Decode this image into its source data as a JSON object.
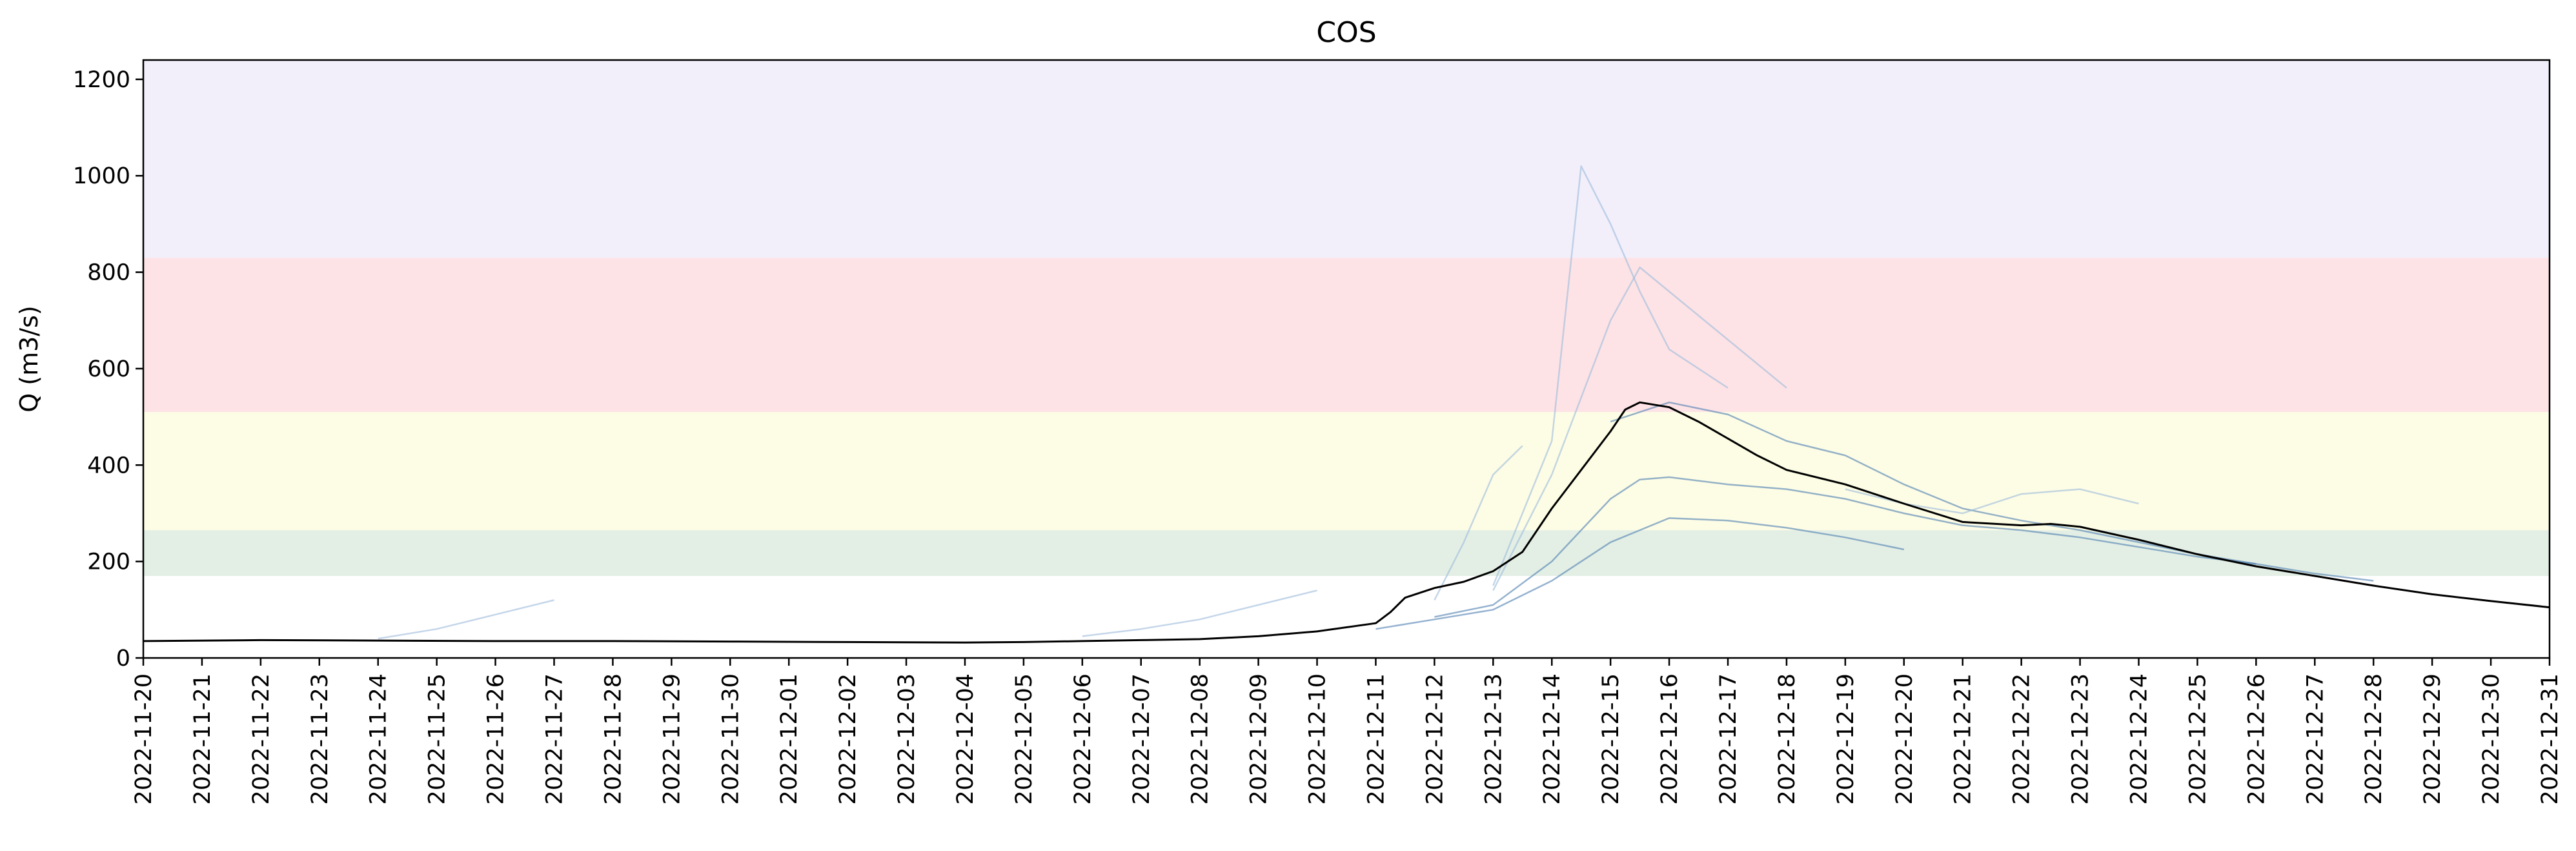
{
  "chart_data": {
    "type": "line",
    "title": "COS",
    "xlabel": "",
    "ylabel": "Q (m3/s)",
    "xlim": [
      "2022-11-20",
      "2022-12-31"
    ],
    "ylim": [
      0,
      1240
    ],
    "yticks": [
      0,
      200,
      400,
      600,
      800,
      1000,
      1200
    ],
    "xticks": [
      "2022-11-20",
      "2022-11-21",
      "2022-11-22",
      "2022-11-23",
      "2022-11-24",
      "2022-11-25",
      "2022-11-26",
      "2022-11-27",
      "2022-11-28",
      "2022-11-29",
      "2022-11-30",
      "2022-12-01",
      "2022-12-02",
      "2022-12-03",
      "2022-12-04",
      "2022-12-05",
      "2022-12-06",
      "2022-12-07",
      "2022-12-08",
      "2022-12-09",
      "2022-12-10",
      "2022-12-11",
      "2022-12-12",
      "2022-12-13",
      "2022-12-14",
      "2022-12-15",
      "2022-12-16",
      "2022-12-17",
      "2022-12-18",
      "2022-12-19",
      "2022-12-20",
      "2022-12-21",
      "2022-12-22",
      "2022-12-23",
      "2022-12-24",
      "2022-12-25",
      "2022-12-26",
      "2022-12-27",
      "2022-12-28",
      "2022-12-29",
      "2022-12-30",
      "2022-12-31"
    ],
    "grid": false,
    "threshold_bands": [
      {
        "from": 170,
        "to": 265,
        "color": "#e3efe5"
      },
      {
        "from": 265,
        "to": 510,
        "color": "#fdfde6"
      },
      {
        "from": 510,
        "to": 830,
        "color": "#fde3e6"
      },
      {
        "from": 830,
        "to": 1240,
        "color": "#f2effb"
      }
    ],
    "series": [
      {
        "role": "observed",
        "color": "#000000",
        "x": [
          "2022-11-20",
          "2022-11-22",
          "2022-11-24",
          "2022-11-26",
          "2022-11-28",
          "2022-11-30",
          "2022-12-02",
          "2022-12-04",
          "2022-12-05",
          "2022-12-06",
          "2022-12-07",
          "2022-12-08",
          "2022-12-09",
          "2022-12-10",
          "2022-12-11",
          "2022-12-11 06:00",
          "2022-12-11 12:00",
          "2022-12-12",
          "2022-12-12 12:00",
          "2022-12-13",
          "2022-12-13 12:00",
          "2022-12-14",
          "2022-12-14 12:00",
          "2022-12-15",
          "2022-12-15 06:00",
          "2022-12-15 12:00",
          "2022-12-16",
          "2022-12-16 12:00",
          "2022-12-17",
          "2022-12-17 12:00",
          "2022-12-18",
          "2022-12-19",
          "2022-12-20",
          "2022-12-21",
          "2022-12-22",
          "2022-12-22 12:00",
          "2022-12-23",
          "2022-12-24",
          "2022-12-25",
          "2022-12-26",
          "2022-12-27",
          "2022-12-28",
          "2022-12-29",
          "2022-12-30",
          "2022-12-31"
        ],
        "values": [
          35,
          37,
          36,
          35,
          35,
          34,
          33,
          32,
          33,
          35,
          37,
          39,
          45,
          55,
          72,
          95,
          125,
          145,
          158,
          180,
          220,
          310,
          390,
          470,
          515,
          530,
          520,
          490,
          455,
          420,
          390,
          360,
          320,
          282,
          275,
          278,
          272,
          245,
          215,
          190,
          170,
          150,
          132,
          118,
          105
        ]
      },
      {
        "role": "forecast-ensemble",
        "color": "#4f7fb0",
        "x": [
          "2022-12-12",
          "2022-12-13",
          "2022-12-14",
          "2022-12-15",
          "2022-12-15 12:00",
          "2022-12-16",
          "2022-12-17",
          "2022-12-18",
          "2022-12-19",
          "2022-12-20",
          "2022-12-21",
          "2022-12-22",
          "2022-12-23",
          "2022-12-24",
          "2022-12-25",
          "2022-12-26",
          "2022-12-27",
          "2022-12-28"
        ],
        "values": [
          85,
          110,
          200,
          330,
          370,
          375,
          360,
          350,
          330,
          300,
          275,
          265,
          250,
          230,
          210,
          195,
          175,
          160
        ]
      },
      {
        "role": "forecast-ensemble",
        "color": "#4f7fb0",
        "x": [
          "2022-12-15",
          "2022-12-16",
          "2022-12-17",
          "2022-12-18",
          "2022-12-19",
          "2022-12-20",
          "2022-12-21",
          "2022-12-22",
          "2022-12-23",
          "2022-12-24",
          "2022-12-25",
          "2022-12-26"
        ],
        "values": [
          490,
          530,
          505,
          450,
          420,
          360,
          310,
          285,
          265,
          240,
          215,
          195
        ]
      },
      {
        "role": "forecast-ensemble",
        "color": "#4f7fb0",
        "x": [
          "2022-12-11",
          "2022-12-12",
          "2022-12-13",
          "2022-12-14",
          "2022-12-15",
          "2022-12-16",
          "2022-12-17",
          "2022-12-18",
          "2022-12-19",
          "2022-12-20"
        ],
        "values": [
          60,
          80,
          100,
          160,
          240,
          290,
          285,
          270,
          250,
          225
        ]
      },
      {
        "role": "forecast-ensemble",
        "color": "#9dbadb",
        "x": [
          "2022-12-13",
          "2022-12-14",
          "2022-12-14 12:00",
          "2022-12-15",
          "2022-12-15 12:00",
          "2022-12-16",
          "2022-12-17"
        ],
        "values": [
          150,
          450,
          1020,
          900,
          760,
          640,
          560
        ]
      },
      {
        "role": "forecast-ensemble",
        "color": "#9dbadb",
        "x": [
          "2022-12-13",
          "2022-12-14",
          "2022-12-15",
          "2022-12-15 12:00",
          "2022-12-16",
          "2022-12-17",
          "2022-12-18"
        ],
        "values": [
          140,
          380,
          700,
          810,
          760,
          660,
          560
        ]
      },
      {
        "role": "forecast-ensemble",
        "color": "#9dbadb",
        "x": [
          "2022-12-12",
          "2022-12-12 12:00",
          "2022-12-13",
          "2022-12-13 12:00"
        ],
        "values": [
          120,
          240,
          380,
          440
        ]
      },
      {
        "role": "forecast-ensemble",
        "color": "#9dbadb",
        "x": [
          "2022-11-24",
          "2022-11-25",
          "2022-11-26",
          "2022-11-27"
        ],
        "values": [
          40,
          60,
          90,
          120
        ]
      },
      {
        "role": "forecast-ensemble",
        "color": "#9dbadb",
        "x": [
          "2022-12-06",
          "2022-12-07",
          "2022-12-08",
          "2022-12-09",
          "2022-12-10"
        ],
        "values": [
          45,
          60,
          80,
          110,
          140
        ]
      },
      {
        "role": "forecast-ensemble",
        "color": "#9dbadb",
        "x": [
          "2022-12-19",
          "2022-12-20",
          "2022-12-21",
          "2022-12-22",
          "2022-12-23",
          "2022-12-24"
        ],
        "values": [
          350,
          320,
          300,
          340,
          350,
          320
        ]
      }
    ]
  }
}
